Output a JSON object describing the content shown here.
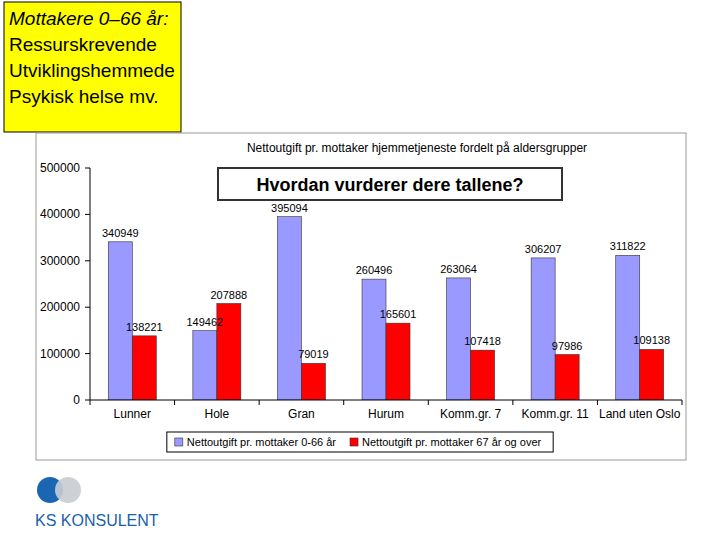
{
  "panel": {
    "lines": [
      "Mottakere 0–66 år:",
      "Ressurskrevende",
      "Utviklingshemmede",
      "Psykisk helse mv."
    ]
  },
  "logo": {
    "text": "KS KONSULENT"
  },
  "chart_data": {
    "type": "bar",
    "title": "Nettoutgift pr. mottaker hjemmetjeneste fordelt på aldersgrupper",
    "annotations": [
      "Hvordan vurderer dere tallene?"
    ],
    "categories": [
      "Lunner",
      "Hole",
      "Gran",
      "Hurum",
      "Komm.gr. 7",
      "Komm.gr. 11",
      "Land uten Oslo"
    ],
    "series": [
      {
        "name": "Nettoutgift pr. mottaker 0-66 år",
        "color": "#9999ff",
        "values": [
          340949,
          149462,
          395094,
          260496,
          263064,
          306207,
          311822
        ]
      },
      {
        "name": "Nettoutgift pr. mottaker 67 år og over",
        "color": "#ff0000",
        "values": [
          138221,
          207888,
          79019,
          165601,
          107418,
          97986,
          109138
        ]
      }
    ],
    "ylim": [
      0,
      500000
    ],
    "yticks": [
      0,
      100000,
      200000,
      300000,
      400000,
      500000
    ],
    "grid": false,
    "legend": "bottom",
    "data_labels": true
  }
}
